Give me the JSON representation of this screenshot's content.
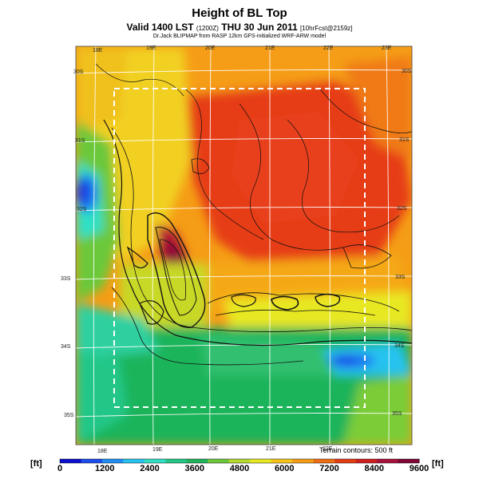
{
  "header": {
    "title": "Height of BL Top",
    "valid_prefix": "Valid 1400 LST",
    "valid_small": "(1200Z)",
    "valid_suffix": "THU 30 Jun 2011",
    "valid_fcst": "[10hrFcst@2159z]",
    "credit": "Dr.Jack BLIPMAP from RASP 12km GFS-initialized WRF-ARW model"
  },
  "map": {
    "lon_labels_top": [
      "18E",
      "19E",
      "20E",
      "21E",
      "22E",
      "23E"
    ],
    "lon_labels_bottom": [
      "18E",
      "19E",
      "20E",
      "21E",
      "22E"
    ],
    "lat_labels_left": [
      "30S",
      "31S",
      "32S",
      "33S",
      "34S",
      "35S"
    ],
    "lat_labels_right": [
      "30S",
      "31S",
      "32S",
      "33S",
      "34S",
      "35S"
    ],
    "terrain_note": "Terrain contours: 500 ft"
  },
  "colorbar": {
    "unit_left": "[ft]",
    "unit_right": "[ft]",
    "tick_labels": [
      "0",
      "1200",
      "2400",
      "3600",
      "4800",
      "6000",
      "7200",
      "8400",
      "9600"
    ],
    "colors": [
      "#0a0fd0",
      "#1a4cf0",
      "#1f8ff5",
      "#27c3f0",
      "#2fe0c5",
      "#22c788",
      "#1fb45a",
      "#6cc83a",
      "#b4dc2c",
      "#e8e823",
      "#f7c51a",
      "#f59d16",
      "#f06d13",
      "#e63c12",
      "#d01e1e",
      "#a8103a",
      "#800636"
    ]
  }
}
